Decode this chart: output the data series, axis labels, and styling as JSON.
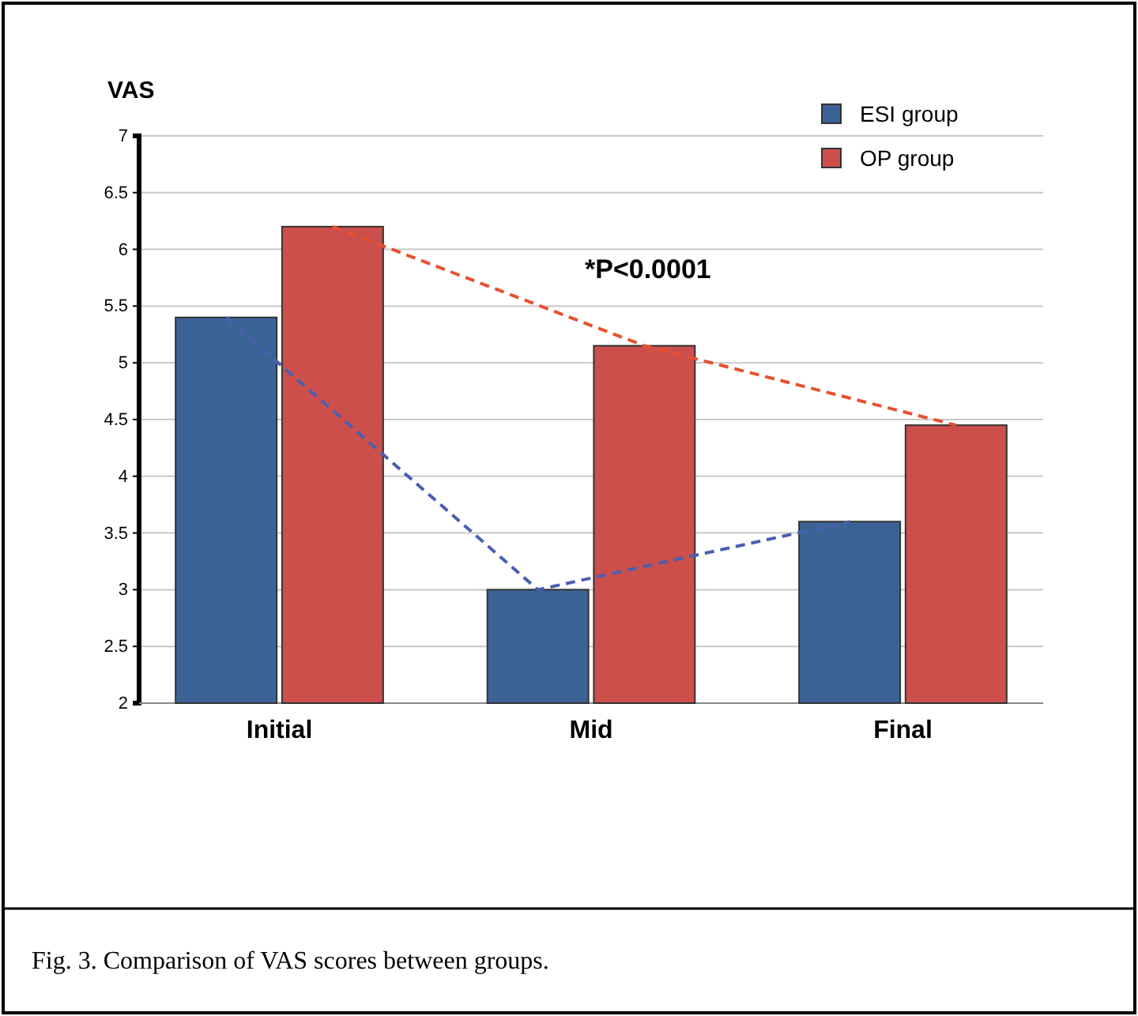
{
  "chart_data": {
    "type": "bar",
    "ylabel": "VAS",
    "categories": [
      "Initial",
      "Mid",
      "Final"
    ],
    "series": [
      {
        "name": "ESI group",
        "color": "#3b6396",
        "values": [
          5.4,
          3.0,
          3.6
        ]
      },
      {
        "name": "OP group",
        "color": "#cd4f4c",
        "values": [
          6.2,
          5.15,
          4.45
        ]
      },
      {
        "type": "line",
        "color": "#4a5fb0",
        "values": [
          5.4,
          3.0,
          3.6
        ]
      },
      {
        "type": "line",
        "color": "#e8502e",
        "values": [
          6.2,
          5.15,
          4.45
        ]
      }
    ],
    "ylim": [
      2,
      7
    ],
    "yticks": [
      2,
      2.5,
      3,
      3.5,
      4,
      4.5,
      5,
      5.5,
      6,
      6.5,
      7
    ],
    "grid": "y",
    "legend": "top right",
    "line_style": "dashed",
    "marker": "none",
    "annotations": [
      "*P<0.0001",
      "Fig. 3. Comparison of VAS scores between groups."
    ]
  }
}
